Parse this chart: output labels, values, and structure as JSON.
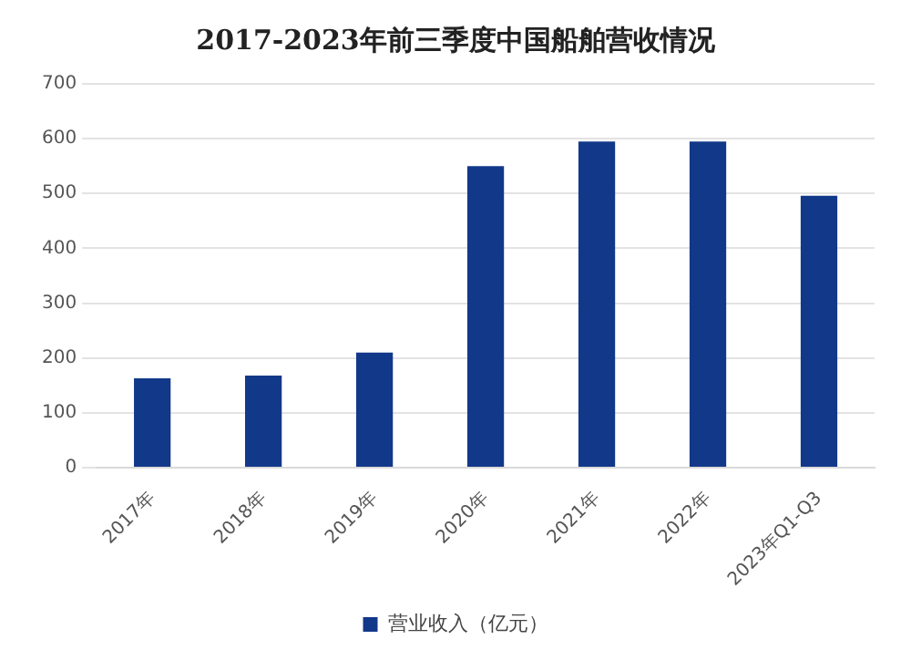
{
  "chart_data": {
    "type": "bar",
    "title": "2017-2023年前三季度中国船舶营收情况",
    "categories": [
      "2017年",
      "2018年",
      "2019年",
      "2020年",
      "2021年",
      "2022年",
      "2023年Q1-Q3"
    ],
    "series": [
      {
        "name": "营业收入（亿元）",
        "color": "#12388a",
        "values": [
          163,
          168,
          210,
          550,
          595,
          595,
          496
        ]
      }
    ],
    "ylim": [
      0,
      700
    ],
    "yticks": [
      0,
      100,
      200,
      300,
      400,
      500,
      600,
      700
    ],
    "grid": "y",
    "legend": "bottom"
  }
}
